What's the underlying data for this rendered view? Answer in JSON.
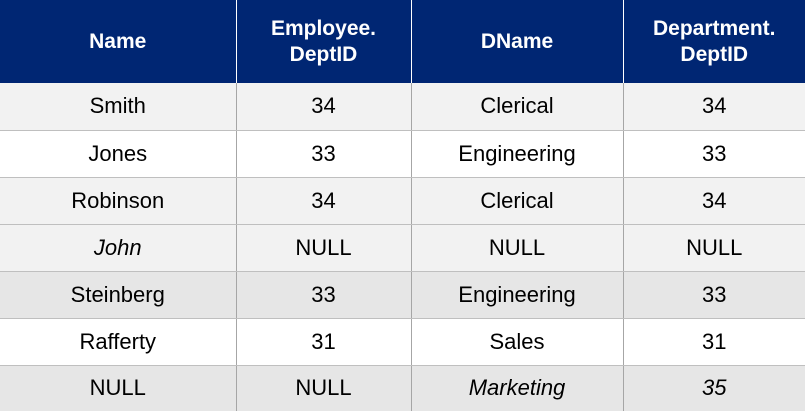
{
  "headers": [
    [
      "Name"
    ],
    [
      "Employee.",
      "DeptID"
    ],
    [
      "DName"
    ],
    [
      "Department.",
      "DeptID"
    ]
  ],
  "rows": [
    {
      "shade": "light",
      "cells": [
        {
          "text": "Smith"
        },
        {
          "text": "34"
        },
        {
          "text": "Clerical"
        },
        {
          "text": "34"
        }
      ]
    },
    {
      "shade": "white",
      "cells": [
        {
          "text": "Jones"
        },
        {
          "text": "33"
        },
        {
          "text": "Engineering"
        },
        {
          "text": "33"
        }
      ]
    },
    {
      "shade": "light",
      "cells": [
        {
          "text": "Robinson"
        },
        {
          "text": "34"
        },
        {
          "text": "Clerical"
        },
        {
          "text": "34"
        }
      ]
    },
    {
      "shade": "light",
      "cells": [
        {
          "text": "John",
          "italic": true
        },
        {
          "text": "NULL"
        },
        {
          "text": "NULL"
        },
        {
          "text": "NULL"
        }
      ]
    },
    {
      "shade": "mid",
      "cells": [
        {
          "text": "Steinberg"
        },
        {
          "text": "33"
        },
        {
          "text": "Engineering"
        },
        {
          "text": "33"
        }
      ]
    },
    {
      "shade": "white",
      "cells": [
        {
          "text": "Rafferty"
        },
        {
          "text": "31"
        },
        {
          "text": "Sales"
        },
        {
          "text": "31"
        }
      ]
    },
    {
      "shade": "mid",
      "cells": [
        {
          "text": "NULL"
        },
        {
          "text": "NULL"
        },
        {
          "text": "Marketing",
          "italic": true
        },
        {
          "text": "35",
          "italic": true
        }
      ]
    }
  ],
  "colors": {
    "header_bg": "#002673",
    "header_text": "#ffffff",
    "row_light": "#f2f2f2",
    "row_white": "#ffffff",
    "row_mid": "#e6e6e6"
  }
}
